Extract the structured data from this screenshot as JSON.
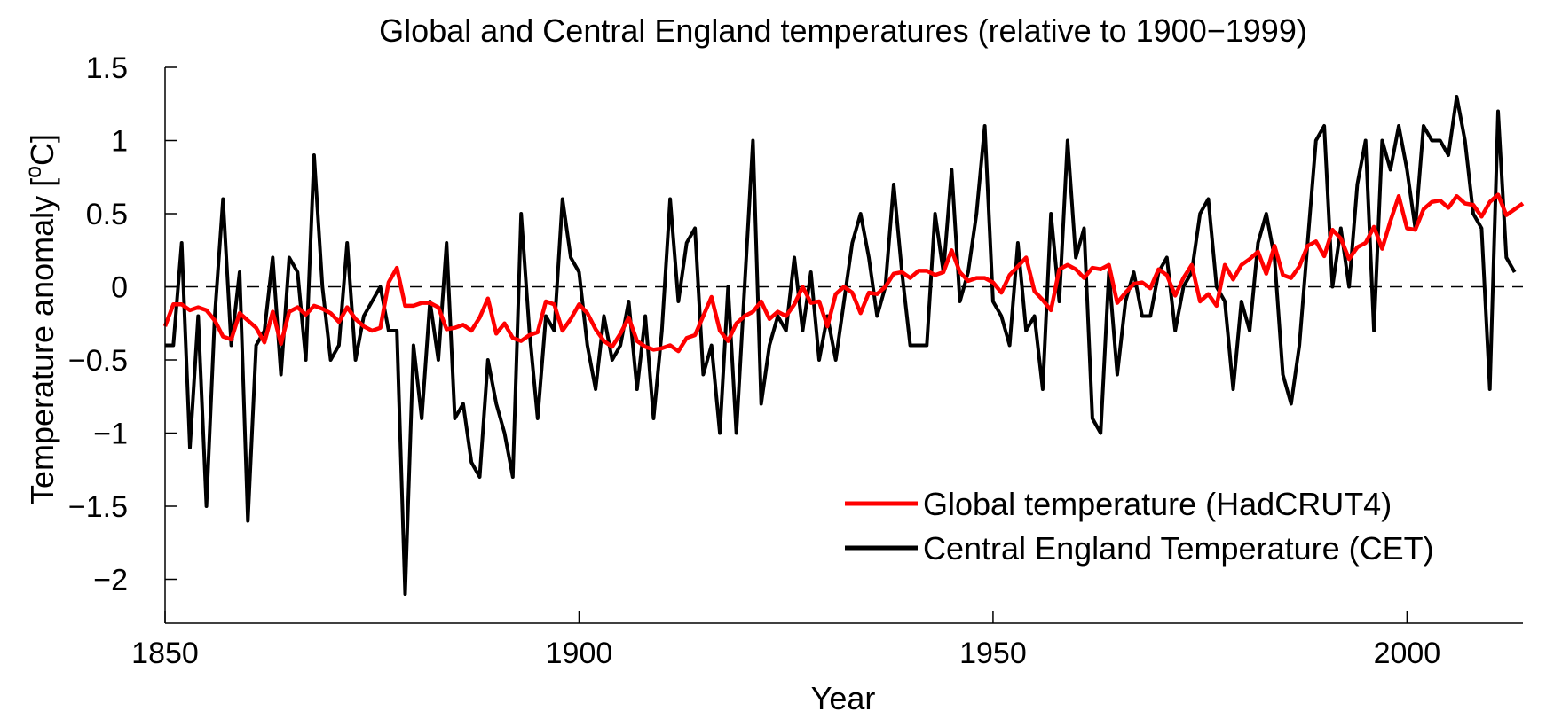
{
  "chart_data": {
    "type": "line",
    "title": "Global and Central England temperatures (relative to 1900−1999)",
    "xlabel": "Year",
    "ylabel_text": "Temperature anomaly [",
    "ylabel_degree": "o",
    "ylabel_unit": "C]",
    "xlim": [
      1850,
      2014
    ],
    "ylim": [
      -2.3,
      1.5
    ],
    "x_ticks": [
      1850,
      1900,
      1950,
      2000
    ],
    "x_tick_labels": [
      "1850",
      "1900",
      "1950",
      "2000"
    ],
    "y_ticks": [
      -2,
      -1.5,
      -1,
      -0.5,
      0,
      0.5,
      1,
      1.5
    ],
    "y_tick_labels": [
      "−2",
      "−1.5",
      "−1",
      "−0.5",
      "0",
      "0.5",
      "1",
      "1.5"
    ],
    "reference_line": 0,
    "grid": false,
    "legend_position": "bottom-right",
    "series": [
      {
        "name": "Global temperature (HadCRUT4)",
        "color": "#ff0000",
        "x_start": 1850,
        "values": [
          -0.27,
          -0.12,
          -0.12,
          -0.16,
          -0.14,
          -0.16,
          -0.23,
          -0.34,
          -0.36,
          -0.18,
          -0.23,
          -0.28,
          -0.38,
          -0.17,
          -0.39,
          -0.17,
          -0.14,
          -0.19,
          -0.13,
          -0.15,
          -0.18,
          -0.24,
          -0.14,
          -0.22,
          -0.27,
          -0.3,
          -0.28,
          0.03,
          0.13,
          -0.13,
          -0.13,
          -0.11,
          -0.11,
          -0.14,
          -0.29,
          -0.28,
          -0.26,
          -0.3,
          -0.21,
          -0.08,
          -0.32,
          -0.25,
          -0.35,
          -0.37,
          -0.33,
          -0.31,
          -0.1,
          -0.12,
          -0.3,
          -0.22,
          -0.12,
          -0.18,
          -0.29,
          -0.37,
          -0.41,
          -0.32,
          -0.21,
          -0.37,
          -0.41,
          -0.43,
          -0.42,
          -0.4,
          -0.44,
          -0.35,
          -0.33,
          -0.2,
          -0.07,
          -0.3,
          -0.37,
          -0.25,
          -0.2,
          -0.17,
          -0.1,
          -0.22,
          -0.17,
          -0.2,
          -0.12,
          0.0,
          -0.11,
          -0.1,
          -0.27,
          -0.05,
          0.0,
          -0.04,
          -0.18,
          -0.04,
          -0.05,
          0.0,
          0.09,
          0.1,
          0.06,
          0.11,
          0.11,
          0.08,
          0.1,
          0.25,
          0.1,
          0.04,
          0.06,
          0.06,
          0.03,
          -0.04,
          0.08,
          0.14,
          0.2,
          -0.03,
          -0.09,
          -0.16,
          0.12,
          0.15,
          0.12,
          0.06,
          0.13,
          0.12,
          0.15,
          -0.11,
          -0.04,
          0.02,
          0.03,
          -0.01,
          0.12,
          0.08,
          -0.06,
          0.06,
          0.15,
          -0.1,
          -0.05,
          -0.13,
          0.15,
          0.05,
          0.15,
          0.19,
          0.24,
          0.09,
          0.28,
          0.08,
          0.06,
          0.14,
          0.28,
          0.31,
          0.21,
          0.39,
          0.33,
          0.19,
          0.27,
          0.3,
          0.41,
          0.26,
          0.45,
          0.62,
          0.4,
          0.39,
          0.53,
          0.58,
          0.59,
          0.54,
          0.62,
          0.57,
          0.56,
          0.48,
          0.58,
          0.63,
          0.49,
          0.53,
          0.57
        ]
      },
      {
        "name": "Central England Temperature (CET)",
        "color": "#000000",
        "x_start": 1850,
        "values": [
          -0.4,
          -0.4,
          0.3,
          -1.1,
          -0.2,
          -1.5,
          -0.2,
          0.6,
          -0.4,
          0.1,
          -1.6,
          -0.4,
          -0.3,
          0.2,
          -0.6,
          0.2,
          0.1,
          -0.5,
          0.9,
          0.0,
          -0.5,
          -0.4,
          0.3,
          -0.5,
          -0.2,
          -0.1,
          0.0,
          -0.3,
          -0.3,
          -2.1,
          -0.4,
          -0.9,
          -0.1,
          -0.5,
          0.3,
          -0.9,
          -0.8,
          -1.2,
          -1.3,
          -0.5,
          -0.8,
          -1.0,
          -1.3,
          0.5,
          -0.3,
          -0.9,
          -0.2,
          -0.3,
          0.6,
          0.2,
          0.1,
          -0.4,
          -0.7,
          -0.2,
          -0.5,
          -0.4,
          -0.1,
          -0.7,
          -0.2,
          -0.9,
          -0.3,
          0.6,
          -0.1,
          0.3,
          0.4,
          -0.6,
          -0.4,
          -1.0,
          0.0,
          -1.0,
          0.0,
          1.0,
          -0.8,
          -0.4,
          -0.2,
          -0.3,
          0.2,
          -0.3,
          0.1,
          -0.5,
          -0.2,
          -0.5,
          -0.1,
          0.3,
          0.5,
          0.2,
          -0.2,
          0.0,
          0.7,
          0.1,
          -0.4,
          -0.4,
          -0.4,
          0.5,
          0.1,
          0.8,
          -0.1,
          0.1,
          0.5,
          1.1,
          -0.1,
          -0.2,
          -0.4,
          0.3,
          -0.3,
          -0.2,
          -0.7,
          0.5,
          -0.1,
          1.0,
          0.2,
          0.4,
          -0.9,
          -1.0,
          0.1,
          -0.6,
          -0.1,
          0.1,
          -0.2,
          -0.2,
          0.1,
          0.2,
          -0.3,
          0.0,
          0.1,
          0.5,
          0.6,
          0.0,
          -0.1,
          -0.7,
          -0.1,
          -0.3,
          0.3,
          0.5,
          0.2,
          -0.6,
          -0.8,
          -0.4,
          0.3,
          1.0,
          1.1,
          0.0,
          0.4,
          0.0,
          0.7,
          1.0,
          -0.3,
          1.0,
          0.8,
          1.1,
          0.8,
          0.4,
          1.1,
          1.0,
          1.0,
          0.9,
          1.3,
          1.0,
          0.5,
          0.4,
          -0.7,
          1.2,
          0.2,
          0.1
        ]
      }
    ]
  }
}
